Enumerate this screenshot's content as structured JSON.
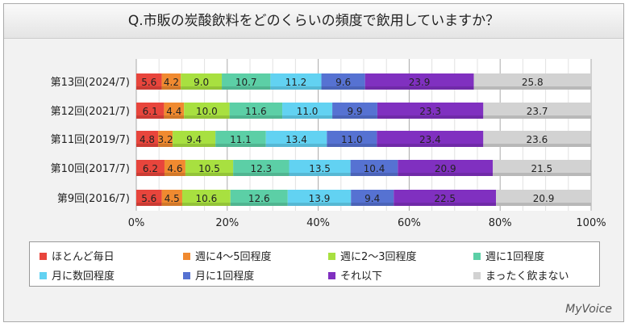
{
  "chart_data": {
    "type": "bar",
    "orientation": "horizontal-stacked-100",
    "title": "Q.市販の炭酸飲料をどのくらいの頻度で飲用していますか？",
    "categories": [
      "第13回(2024/7)",
      "第12回(2021/7)",
      "第11回(2019/7)",
      "第10回(2017/7)",
      "第9回(2016/7)"
    ],
    "series": [
      {
        "name": "ほとんど毎日",
        "color": "#e8453c",
        "values": [
          5.6,
          6.1,
          4.8,
          6.2,
          5.6
        ]
      },
      {
        "name": "週に4～5回程度",
        "color": "#f08a30",
        "values": [
          4.2,
          4.4,
          3.2,
          4.6,
          4.5
        ]
      },
      {
        "name": "週に2～3回程度",
        "color": "#a8e040",
        "values": [
          9.0,
          10.0,
          9.4,
          10.5,
          10.6
        ]
      },
      {
        "name": "週に1回程度",
        "color": "#5ccfa6",
        "values": [
          10.7,
          11.6,
          11.1,
          12.3,
          12.6
        ]
      },
      {
        "name": "月に数回程度",
        "color": "#62d2f2",
        "values": [
          11.2,
          11.0,
          13.4,
          13.5,
          13.9
        ]
      },
      {
        "name": "月に1回程度",
        "color": "#5672d2",
        "values": [
          9.6,
          9.9,
          11.0,
          10.4,
          9.4
        ]
      },
      {
        "name": "それ以下",
        "color": "#8030c0",
        "values": [
          23.9,
          23.3,
          23.4,
          20.9,
          22.5
        ]
      },
      {
        "name": "まったく飲まない",
        "color": "#d2d2d2",
        "values": [
          25.8,
          23.7,
          23.6,
          21.5,
          20.9
        ]
      }
    ],
    "xticks": [
      "0%",
      "20%",
      "40%",
      "60%",
      "80%",
      "100%"
    ],
    "xlim": [
      0,
      100
    ],
    "grid": true,
    "legend": "bottom"
  },
  "brand": "MyVoice"
}
